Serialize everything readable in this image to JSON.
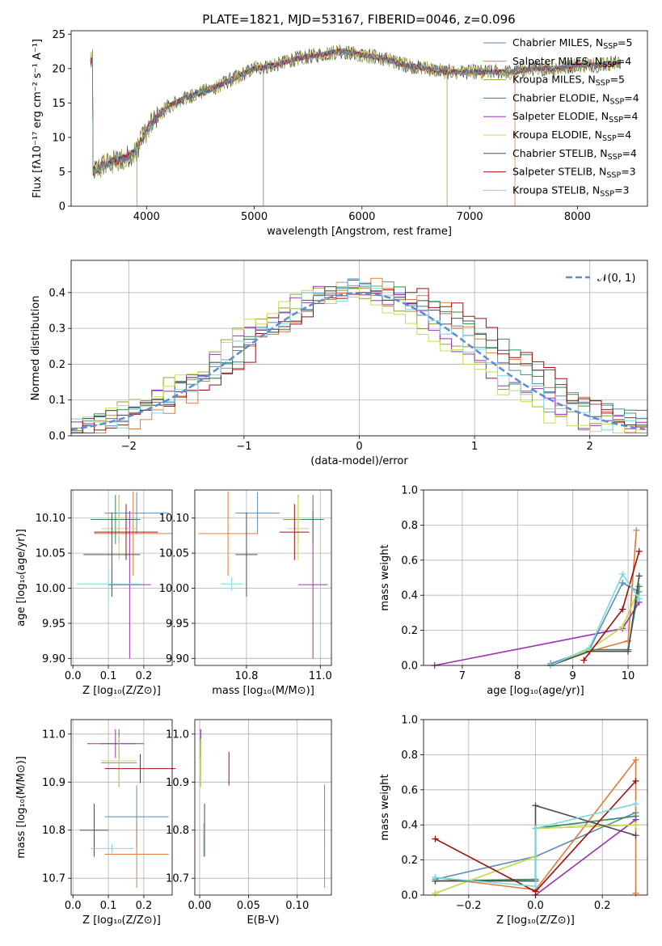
{
  "page": {
    "title": "PLATE=1821, MJD=53167, FIBERID=0046, z=0.096"
  },
  "series": [
    {
      "name": "Chabrier MILES, N",
      "sub": "SSP",
      "suffix": "=5",
      "color": "#5b8bb5"
    },
    {
      "name": "Salpeter MILES, N",
      "sub": "SSP",
      "suffix": "=4",
      "color": "#e07b3a"
    },
    {
      "name": "Kroupa MILES, N",
      "sub": "SSP",
      "suffix": "=5",
      "color": "#9b9b3a"
    },
    {
      "name": "Chabrier ELODIE, N",
      "sub": "SSP",
      "suffix": "=4",
      "color": "#2e8b57"
    },
    {
      "name": "Salpeter ELODIE, N",
      "sub": "SSP",
      "suffix": "=4",
      "color": "#9b30b0"
    },
    {
      "name": "Kroupa ELODIE, N",
      "sub": "SSP",
      "suffix": "=4",
      "color": "#c8dd50"
    },
    {
      "name": "Chabrier STELIB, N",
      "sub": "SSP",
      "suffix": "=4",
      "color": "#4d4d4d"
    },
    {
      "name": "Salpeter STELIB, N",
      "sub": "SSP",
      "suffix": "=3",
      "color": "#a01010"
    },
    {
      "name": "Kroupa STELIB, N",
      "sub": "SSP",
      "suffix": "=3",
      "color": "#7ad8e0"
    }
  ],
  "chart_data": [
    {
      "id": "spectrum",
      "type": "line",
      "title": "PLATE=1821, MJD=53167, FIBERID=0046, z=0.096",
      "xlabel": "wavelength [Angstrom, rest frame]",
      "ylabel": "Flux [fλ10⁻¹⁷ erg cm⁻² s⁻¹ A⁻¹]",
      "xlim": [
        3300,
        8650
      ],
      "ylim": [
        0,
        25.5
      ],
      "xticks": [
        4000,
        5000,
        6000,
        7000,
        8000
      ],
      "yticks": [
        0,
        5,
        10,
        15,
        20,
        25
      ],
      "legend": "upper right",
      "continuum": {
        "x": [
          3500,
          3600,
          3700,
          3800,
          3900,
          4000,
          4100,
          4200,
          4400,
          4600,
          4800,
          5000,
          5200,
          5400,
          5600,
          5800,
          6000,
          6200,
          6400,
          6600,
          6800,
          7000,
          7200,
          7400,
          7600,
          7800,
          8000,
          8200,
          8400
        ],
        "y": [
          5,
          6,
          6.5,
          7,
          8,
          11,
          13,
          14.5,
          16,
          17,
          18.5,
          20,
          20.5,
          21.5,
          22,
          22.5,
          22,
          21.5,
          20.5,
          20,
          19.5,
          19.5,
          19.5,
          19.5,
          20,
          20,
          20.5,
          20.5,
          21
        ]
      }
    },
    {
      "id": "residuals",
      "type": "line",
      "xlabel": "(data-model)/error",
      "ylabel": "Normed distribution",
      "xlim": [
        -2.5,
        2.5
      ],
      "ylim": [
        0,
        0.49
      ],
      "xticks": [
        -2,
        -1,
        0,
        1,
        2
      ],
      "yticks": [
        0.0,
        0.1,
        0.2,
        0.3,
        0.4
      ],
      "gaussian_label": "𝒩(0, 1)",
      "legend": "upper right",
      "grid": true
    },
    {
      "id": "age_vs_Z",
      "type": "scatter",
      "xlabel": "Z [log₁₀(Z/Z⊙)]",
      "ylabel": "age  [log₁₀(age/yr)]",
      "xlim": [
        -0.005,
        0.28
      ],
      "ylim": [
        9.89,
        10.14
      ],
      "xticks": [
        0.0,
        0.1,
        0.2
      ],
      "yticks": [
        9.9,
        9.95,
        10.0,
        10.05,
        10.1
      ],
      "points": [
        {
          "x": 0.18,
          "xerr": 0.09,
          "y": 10.107,
          "yerr": 0.03
        },
        {
          "x": 0.17,
          "xerr": 0.11,
          "y": 10.078,
          "yerr": 0.06
        },
        {
          "x": 0.13,
          "xerr": 0.05,
          "y": 10.098,
          "yerr": 0.035
        },
        {
          "x": 0.12,
          "xerr": 0.07,
          "y": 10.098,
          "yerr": 0.035
        },
        {
          "x": 0.16,
          "xerr": 0.06,
          "y": 10.005,
          "yerr": 0.105
        },
        {
          "x": 0.13,
          "xerr": 0.05,
          "y": 10.085,
          "yerr": 0.045
        },
        {
          "x": 0.11,
          "xerr": 0.08,
          "y": 10.048,
          "yerr": 0.06
        },
        {
          "x": 0.15,
          "xerr": 0.09,
          "y": 10.08,
          "yerr": 0.04
        },
        {
          "x": 0.1,
          "xerr": 0.09,
          "y": 10.006,
          "yerr": 0.025
        }
      ]
    },
    {
      "id": "age_vs_mass",
      "type": "scatter",
      "xlabel": "mass [log₁₀(M/M⊙)]",
      "ylim": [
        9.89,
        10.14
      ],
      "xlim": [
        10.66,
        11.03
      ],
      "xticks": [
        10.8,
        11.0
      ],
      "yticks": [
        9.9,
        9.95,
        10.0,
        10.05,
        10.1
      ],
      "points": [
        {
          "x": 10.83,
          "xerr": 0.06,
          "y": 10.107,
          "yerr": 0.03
        },
        {
          "x": 10.75,
          "xerr": 0.08,
          "y": 10.078,
          "yerr": 0.06
        },
        {
          "x": 10.94,
          "xerr": 0.04,
          "y": 10.098,
          "yerr": 0.035
        },
        {
          "x": 10.98,
          "xerr": 0.03,
          "y": 10.098,
          "yerr": 0.035
        },
        {
          "x": 10.98,
          "xerr": 0.04,
          "y": 10.005,
          "yerr": 0.105
        },
        {
          "x": 10.94,
          "xerr": 0.03,
          "y": 10.085,
          "yerr": 0.045
        },
        {
          "x": 10.8,
          "xerr": 0.03,
          "y": 10.048,
          "yerr": 0.06
        },
        {
          "x": 10.93,
          "xerr": 0.04,
          "y": 10.08,
          "yerr": 0.04
        },
        {
          "x": 10.76,
          "xerr": 0.03,
          "y": 10.006,
          "yerr": 0.01
        }
      ]
    },
    {
      "id": "mass_weight_vs_age",
      "type": "line",
      "xlabel": "age  [log₁₀(age/yr)]",
      "ylabel": "mass weight",
      "xlim": [
        6.3,
        10.35
      ],
      "ylim": [
        0,
        1.0
      ],
      "xticks": [
        7,
        8,
        9,
        10
      ],
      "yticks": [
        0.0,
        0.2,
        0.4,
        0.6,
        0.8,
        1.0
      ],
      "grid": true,
      "series": [
        {
          "x": [
            8.6,
            9.3,
            9.9,
            10.2
          ],
          "y": [
            0.01,
            0.09,
            0.47,
            0.42
          ]
        },
        {
          "x": [
            8.6,
            9.3,
            10.0,
            10.15
          ],
          "y": [
            0.0,
            0.08,
            0.14,
            0.77
          ]
        },
        {
          "x": [
            8.6,
            9.3,
            9.9,
            10.15
          ],
          "y": [
            0.0,
            0.09,
            0.22,
            0.4
          ]
        },
        {
          "x": [
            8.6,
            9.3,
            10.0,
            10.2
          ],
          "y": [
            0.0,
            0.09,
            0.09,
            0.45
          ]
        },
        {
          "x": [
            6.5,
            9.9,
            10.2
          ],
          "y": [
            0.0,
            0.21,
            0.36
          ]
        },
        {
          "x": [
            8.6,
            9.3,
            9.9,
            10.15
          ],
          "y": [
            0.0,
            0.09,
            0.22,
            0.4
          ]
        },
        {
          "x": [
            8.6,
            9.3,
            10.0,
            10.2
          ],
          "y": [
            0.0,
            0.08,
            0.08,
            0.51
          ]
        },
        {
          "x": [
            9.2,
            9.9,
            10.2
          ],
          "y": [
            0.03,
            0.32,
            0.65
          ]
        },
        {
          "x": [
            8.6,
            9.3,
            9.9,
            10.2
          ],
          "y": [
            0.0,
            0.1,
            0.52,
            0.38
          ]
        }
      ]
    },
    {
      "id": "mass_vs_Z",
      "type": "scatter",
      "xlabel": "Z [log₁₀(Z/Z⊙)]",
      "ylabel": "mass [log₁₀(M/M⊙)]",
      "xlim": [
        -0.005,
        0.28
      ],
      "ylim": [
        10.665,
        11.03
      ],
      "xticks": [
        0.0,
        0.1,
        0.2
      ],
      "yticks": [
        10.7,
        10.8,
        10.9,
        11.0
      ],
      "points": [
        {
          "x": 0.18,
          "xerr": 0.09,
          "y": 10.828,
          "yerr": 0.065
        },
        {
          "x": 0.18,
          "xerr": 0.09,
          "y": 10.75,
          "yerr": 0.07
        },
        {
          "x": 0.13,
          "xerr": 0.05,
          "y": 10.94,
          "yerr": 0.05
        },
        {
          "x": 0.13,
          "xerr": 0.05,
          "y": 10.98,
          "yerr": 0.03
        },
        {
          "x": 0.12,
          "xerr": 0.08,
          "y": 10.98,
          "yerr": 0.03
        },
        {
          "x": 0.13,
          "xerr": 0.05,
          "y": 10.944,
          "yerr": 0.05
        },
        {
          "x": 0.06,
          "xerr": 0.04,
          "y": 10.8,
          "yerr": 0.055
        },
        {
          "x": 0.19,
          "xerr": 0.1,
          "y": 10.928,
          "yerr": 0.03
        },
        {
          "x": 0.11,
          "xerr": 0.06,
          "y": 10.762,
          "yerr": 0.01
        }
      ]
    },
    {
      "id": "mass_vs_EBV",
      "type": "scatter",
      "xlabel": "E(B-V)",
      "xlim": [
        -0.005,
        0.135
      ],
      "ylim": [
        10.665,
        11.03
      ],
      "xticks": [
        0.0,
        0.05,
        0.1
      ],
      "yticks": [
        10.7,
        10.8,
        10.9,
        11.0
      ],
      "points": [
        {
          "x": 0.128,
          "y": 10.83,
          "yerr": 0.065
        },
        {
          "x": 0.128,
          "y": 10.75,
          "yerr": 0.07
        },
        {
          "x": 0.001,
          "y": 10.94,
          "yerr": 0.05
        },
        {
          "x": 0.001,
          "y": 10.98,
          "yerr": 0.03
        },
        {
          "x": 0.001,
          "y": 10.98,
          "yerr": 0.03
        },
        {
          "x": 0.001,
          "y": 10.94,
          "yerr": 0.05
        },
        {
          "x": 0.005,
          "y": 10.8,
          "yerr": 0.055
        },
        {
          "x": 0.03,
          "y": 10.928,
          "yerr": 0.035
        },
        {
          "x": 0.004,
          "y": 10.78,
          "yerr": 0.035
        }
      ]
    },
    {
      "id": "mass_weight_vs_Z",
      "type": "line",
      "xlabel": "Z [log₁₀(Z/Z⊙)]",
      "ylabel": "mass weight",
      "xlim": [
        -0.335,
        0.335
      ],
      "ylim": [
        0,
        1.0
      ],
      "xticks": [
        -0.2,
        0.0,
        0.2
      ],
      "yticks": [
        0.0,
        0.2,
        0.4,
        0.6,
        0.8,
        1.0
      ],
      "grid": true,
      "series": [
        {
          "x": [
            -0.3,
            0.0,
            0.3
          ],
          "y": [
            0.09,
            0.22,
            0.47
          ]
        },
        {
          "x": [
            -0.3,
            0.0,
            0.3,
            0.3
          ],
          "y": [
            0.1,
            0.03,
            0.77,
            0.01
          ]
        },
        {
          "x": [
            -0.3,
            0.0,
            0.0,
            0.3
          ],
          "y": [
            0.01,
            0.22,
            0.38,
            0.4
          ]
        },
        {
          "x": [
            -0.3,
            0.0,
            0.0,
            0.3
          ],
          "y": [
            0.08,
            0.09,
            0.38,
            0.45
          ]
        },
        {
          "x": [
            0.0,
            0.3
          ],
          "y": [
            0.0,
            0.43
          ]
        },
        {
          "x": [
            -0.3,
            0.0,
            0.0,
            0.3
          ],
          "y": [
            0.01,
            0.22,
            0.38,
            0.4
          ]
        },
        {
          "x": [
            -0.3,
            0.0,
            0.0,
            0.3
          ],
          "y": [
            0.08,
            0.08,
            0.51,
            0.34
          ]
        },
        {
          "x": [
            -0.3,
            0.0,
            0.3
          ],
          "y": [
            0.32,
            0.02,
            0.65
          ]
        },
        {
          "x": [
            -0.3,
            0.0,
            0.0,
            0.3
          ],
          "y": [
            0.1,
            0.05,
            0.38,
            0.52
          ]
        }
      ]
    }
  ]
}
